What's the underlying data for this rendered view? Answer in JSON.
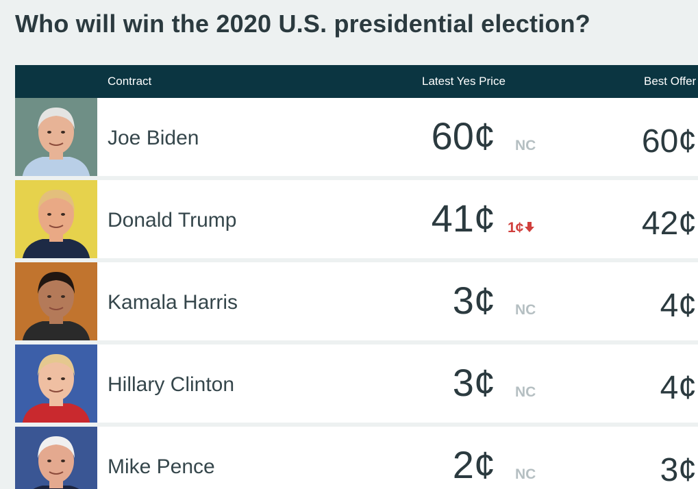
{
  "page": {
    "title": "Who will win the 2020 U.S. presidential election?"
  },
  "table": {
    "headers": {
      "contract": "Contract",
      "latest_yes_price": "Latest Yes Price",
      "best_offer": "Best Offer"
    },
    "rows": [
      {
        "name": "Joe Biden",
        "latest_price": "60¢",
        "change": "NC",
        "change_direction": "none",
        "best_offer": "60¢",
        "photo_icon": "joe-biden-portrait",
        "colors": {
          "bg": "#6f8f86",
          "hair": "#e4e4e2",
          "skin": "#e7b396",
          "shirt": "#b9cfe7"
        }
      },
      {
        "name": "Donald Trump",
        "latest_price": "41¢",
        "change": "1¢",
        "change_direction": "down",
        "best_offer": "42¢",
        "photo_icon": "donald-trump-portrait",
        "colors": {
          "bg": "#e6d24c",
          "hair": "#e3bf7c",
          "skin": "#e9a985",
          "shirt": "#1d2a45"
        }
      },
      {
        "name": "Kamala Harris",
        "latest_price": "3¢",
        "change": "NC",
        "change_direction": "none",
        "best_offer": "4¢",
        "photo_icon": "kamala-harris-portrait",
        "colors": {
          "bg": "#c1742e",
          "hair": "#201611",
          "skin": "#b47a59",
          "shirt": "#2a2a2a"
        }
      },
      {
        "name": "Hillary Clinton",
        "latest_price": "3¢",
        "change": "NC",
        "change_direction": "none",
        "best_offer": "4¢",
        "photo_icon": "hillary-clinton-portrait",
        "colors": {
          "bg": "#3c5fa9",
          "hair": "#e5c88f",
          "skin": "#efbfa2",
          "shirt": "#c9292e"
        }
      },
      {
        "name": "Mike Pence",
        "latest_price": "2¢",
        "change": "NC",
        "change_direction": "none",
        "best_offer": "3¢",
        "photo_icon": "mike-pence-portrait",
        "colors": {
          "bg": "#3a5694",
          "hair": "#f0f0f0",
          "skin": "#e4a98f",
          "shirt": "#1b2440"
        }
      }
    ]
  },
  "colors": {
    "page_bg": "#edf1f1",
    "header_bg": "#0b3541",
    "text": "#2b3a3f",
    "change_neutral": "#b5bfc2",
    "change_down": "#d03f3c"
  }
}
